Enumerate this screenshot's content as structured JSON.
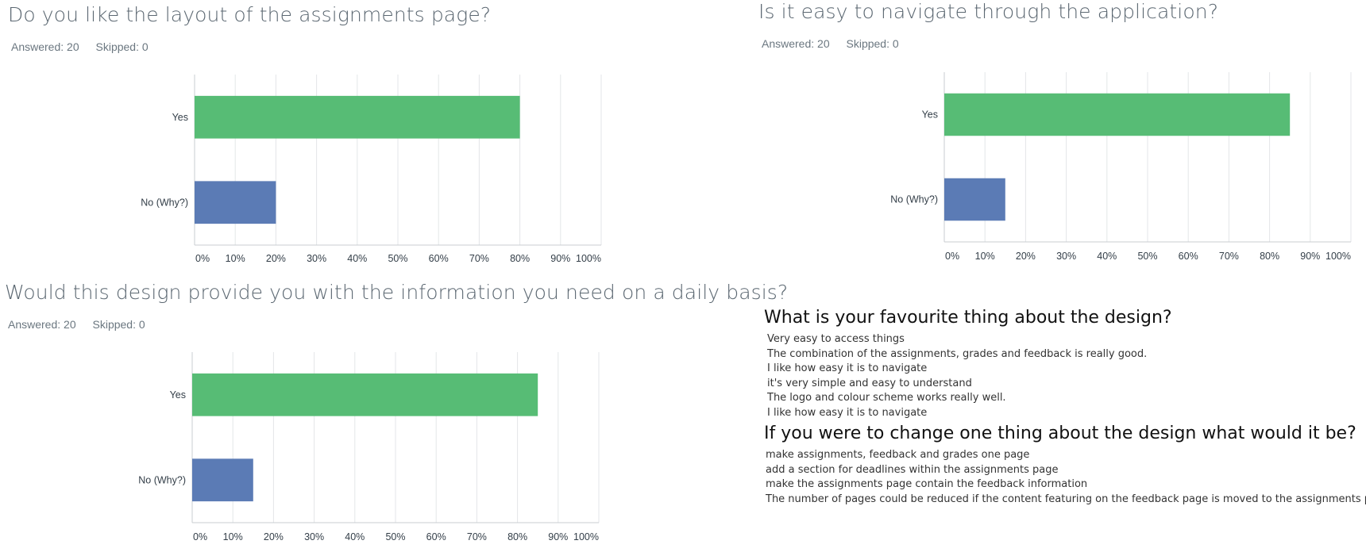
{
  "questions": [
    {
      "title": "Do you like the layout of the assignments page?",
      "answered": "Answered: 20",
      "skipped": "Skipped: 0"
    },
    {
      "title": "Is it easy to navigate through the application?",
      "answered": "Answered: 20",
      "skipped": "Skipped: 0"
    },
    {
      "title": "Would this design provide you with the information you need on a daily basis?",
      "answered": "Answered: 20",
      "skipped": "Skipped: 0"
    }
  ],
  "chart_data": [
    {
      "type": "bar",
      "orientation": "horizontal",
      "categories": [
        "Yes",
        "No (Why?)"
      ],
      "values": [
        80,
        20
      ],
      "colors": [
        "#57bc75",
        "#5b7bb5"
      ],
      "xlim": [
        0,
        100
      ],
      "xticks": [
        "0%",
        "10%",
        "20%",
        "30%",
        "40%",
        "50%",
        "60%",
        "70%",
        "80%",
        "90%",
        "100%"
      ],
      "grid": true
    },
    {
      "type": "bar",
      "orientation": "horizontal",
      "categories": [
        "Yes",
        "No (Why?)"
      ],
      "values": [
        85,
        15
      ],
      "colors": [
        "#57bc75",
        "#5b7bb5"
      ],
      "xlim": [
        0,
        100
      ],
      "xticks": [
        "0%",
        "10%",
        "20%",
        "30%",
        "40%",
        "50%",
        "60%",
        "70%",
        "80%",
        "90%",
        "100%"
      ],
      "grid": true
    },
    {
      "type": "bar",
      "orientation": "horizontal",
      "categories": [
        "Yes",
        "No (Why?)"
      ],
      "values": [
        85,
        15
      ],
      "colors": [
        "#57bc75",
        "#5b7bb5"
      ],
      "xlim": [
        0,
        100
      ],
      "xticks": [
        "0%",
        "10%",
        "20%",
        "30%",
        "40%",
        "50%",
        "60%",
        "70%",
        "80%",
        "90%",
        "100%"
      ],
      "grid": true
    }
  ],
  "open_questions": [
    {
      "title": "What is your favourite thing about the design?",
      "responses": [
        "Very easy to access things",
        "The combination of the assignments, grades and feedback is really good.",
        "I like how easy it is to navigate",
        "it's very simple and easy to understand",
        "The logo and colour scheme works really well.",
        "I like how easy it is to navigate"
      ]
    },
    {
      "title": "If you were to change one thing about the design what would it be?",
      "responses": [
        "make assignments, feedback and grades one page",
        "add a section for deadlines within the assignments page",
        "make the assignments page contain the feedback information",
        "The number of pages could be reduced if the content featuring on the feedback page is moved to the assignments page"
      ]
    }
  ]
}
